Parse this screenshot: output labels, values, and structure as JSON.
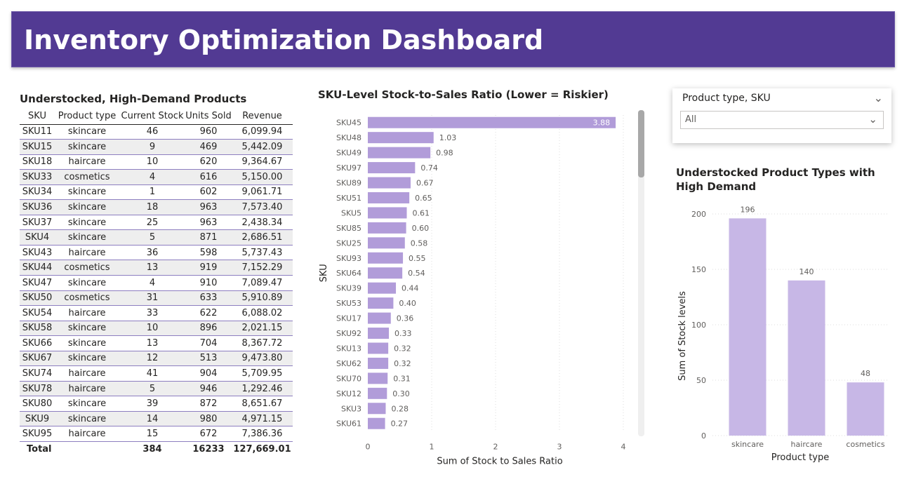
{
  "header": {
    "title": "Inventory Optimization Dashboard"
  },
  "table": {
    "title": "Understocked, High-Demand Products",
    "columns": [
      "SKU",
      "Product type",
      "Current Stock",
      "Units Sold",
      "Revenue"
    ],
    "rows": [
      [
        "SKU11",
        "skincare",
        "46",
        "960",
        "6,099.94"
      ],
      [
        "SKU15",
        "skincare",
        "9",
        "469",
        "5,442.09"
      ],
      [
        "SKU18",
        "haircare",
        "10",
        "620",
        "9,364.67"
      ],
      [
        "SKU33",
        "cosmetics",
        "4",
        "616",
        "5,150.00"
      ],
      [
        "SKU34",
        "skincare",
        "1",
        "602",
        "9,061.71"
      ],
      [
        "SKU36",
        "skincare",
        "18",
        "963",
        "7,573.40"
      ],
      [
        "SKU37",
        "skincare",
        "25",
        "963",
        "2,438.34"
      ],
      [
        "SKU4",
        "skincare",
        "5",
        "871",
        "2,686.51"
      ],
      [
        "SKU43",
        "haircare",
        "36",
        "598",
        "5,737.43"
      ],
      [
        "SKU44",
        "cosmetics",
        "13",
        "919",
        "7,152.29"
      ],
      [
        "SKU47",
        "skincare",
        "4",
        "910",
        "7,089.47"
      ],
      [
        "SKU50",
        "cosmetics",
        "31",
        "633",
        "5,910.89"
      ],
      [
        "SKU54",
        "haircare",
        "33",
        "622",
        "6,088.02"
      ],
      [
        "SKU58",
        "skincare",
        "10",
        "896",
        "2,021.15"
      ],
      [
        "SKU66",
        "skincare",
        "13",
        "704",
        "8,367.72"
      ],
      [
        "SKU67",
        "skincare",
        "12",
        "513",
        "9,473.80"
      ],
      [
        "SKU74",
        "haircare",
        "41",
        "904",
        "5,709.95"
      ],
      [
        "SKU78",
        "haircare",
        "5",
        "946",
        "1,292.46"
      ],
      [
        "SKU80",
        "skincare",
        "39",
        "872",
        "8,651.67"
      ],
      [
        "SKU9",
        "skincare",
        "14",
        "980",
        "4,971.15"
      ],
      [
        "SKU95",
        "haircare",
        "15",
        "672",
        "7,386.36"
      ]
    ],
    "total": [
      "Total",
      "",
      "384",
      "16233",
      "127,669.01"
    ]
  },
  "slicer": {
    "label": "Product type, SKU",
    "value": "All",
    "chevron_icon": "chevron-down-icon"
  },
  "colors": {
    "banner": "#523a93",
    "bar": "#b19cd9",
    "column": "#c7b7e6"
  },
  "chart_data": [
    {
      "type": "bar",
      "orientation": "horizontal",
      "title": "SKU-Level Stock-to-Sales Ratio (Lower = Riskier)",
      "xlabel": "Sum of Stock to Sales Ratio",
      "ylabel": "SKU",
      "xlim": [
        0,
        4
      ],
      "xticks": [
        "0",
        "1",
        "2",
        "3",
        "4"
      ],
      "grid": true,
      "categories": [
        "SKU45",
        "SKU48",
        "SKU49",
        "SKU97",
        "SKU89",
        "SKU51",
        "SKU5",
        "SKU85",
        "SKU25",
        "SKU93",
        "SKU64",
        "SKU39",
        "SKU53",
        "SKU17",
        "SKU92",
        "SKU13",
        "SKU62",
        "SKU70",
        "SKU12",
        "SKU3",
        "SKU61"
      ],
      "values": [
        3.88,
        1.03,
        0.98,
        0.74,
        0.67,
        0.65,
        0.61,
        0.6,
        0.58,
        0.55,
        0.54,
        0.44,
        0.4,
        0.36,
        0.33,
        0.32,
        0.32,
        0.31,
        0.3,
        0.28,
        0.27
      ],
      "labels": [
        "3.88",
        "1.03",
        "0.98",
        "0.74",
        "0.67",
        "0.65",
        "0.61",
        "0.60",
        "0.58",
        "0.55",
        "0.54",
        "0.44",
        "0.40",
        "0.36",
        "0.33",
        "0.32",
        "0.32",
        "0.31",
        "0.30",
        "0.28",
        "0.27"
      ]
    },
    {
      "type": "bar",
      "orientation": "vertical",
      "title": "Understocked Product Types with High Demand",
      "xlabel": "Product type",
      "ylabel": "Sum of Stock levels",
      "ylim": [
        0,
        200
      ],
      "yticks": [
        "0",
        "50",
        "100",
        "150",
        "200"
      ],
      "grid": true,
      "categories": [
        "skincare",
        "haircare",
        "cosmetics"
      ],
      "values": [
        196,
        140,
        48
      ],
      "labels": [
        "196",
        "140",
        "48"
      ]
    }
  ]
}
